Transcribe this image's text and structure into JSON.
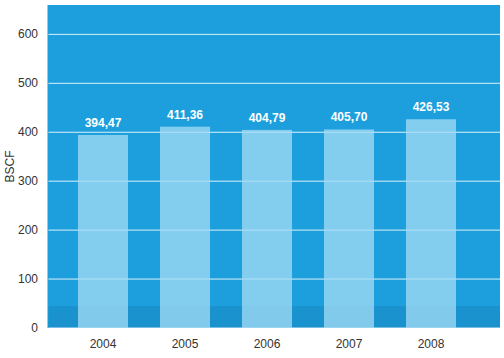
{
  "chart_data": {
    "type": "bar",
    "y_label": "BSCF",
    "categories": [
      "2004",
      "2005",
      "2006",
      "2007",
      "2008"
    ],
    "values": [
      394.47,
      411.36,
      404.79,
      405.7,
      426.53
    ],
    "value_labels": [
      "394,47",
      "411,36",
      "404,79",
      "405,70",
      "426,53"
    ],
    "color": "#a6dcf5",
    "ylim": [
      0,
      660
    ],
    "yticks": [
      0,
      100,
      200,
      300,
      400,
      500,
      600
    ],
    "grid": true,
    "data_labels": true
  }
}
